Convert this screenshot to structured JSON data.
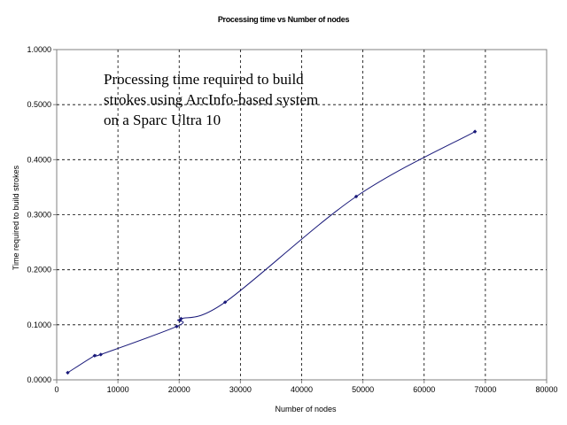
{
  "chart_data": {
    "type": "line",
    "title": "Processing time vs Number of nodes",
    "xlabel": "Number of nodes",
    "ylabel": "Time required to build strokes",
    "xlim": [
      0,
      80000
    ],
    "ylim": [
      0,
      1
    ],
    "x_ticks": [
      "0",
      "10000",
      "20000",
      "30000",
      "40000",
      "50000",
      "60000",
      "70000",
      "80000"
    ],
    "y_ticks": [
      "0.0000",
      "0.1000",
      "0.2000",
      "0.3000",
      "0.4000",
      "0.5000",
      "1.0000"
    ],
    "grid": true,
    "smooth": true,
    "color": "#1a1a7a",
    "points": [
      {
        "x": 1800,
        "y": 0.013
      },
      {
        "x": 6200,
        "y": 0.044
      },
      {
        "x": 7200,
        "y": 0.046
      },
      {
        "x": 19600,
        "y": 0.097
      },
      {
        "x": 20100,
        "y": 0.108
      },
      {
        "x": 20300,
        "y": 0.111
      },
      {
        "x": 27500,
        "y": 0.141
      },
      {
        "x": 48900,
        "y": 0.333
      },
      {
        "x": 68300,
        "y": 0.451
      }
    ],
    "annotation": {
      "lines": [
        "Processing time required to build",
        "strokes using ArcInfo-based system",
        "on a Sparc Ultra 10"
      ]
    }
  }
}
